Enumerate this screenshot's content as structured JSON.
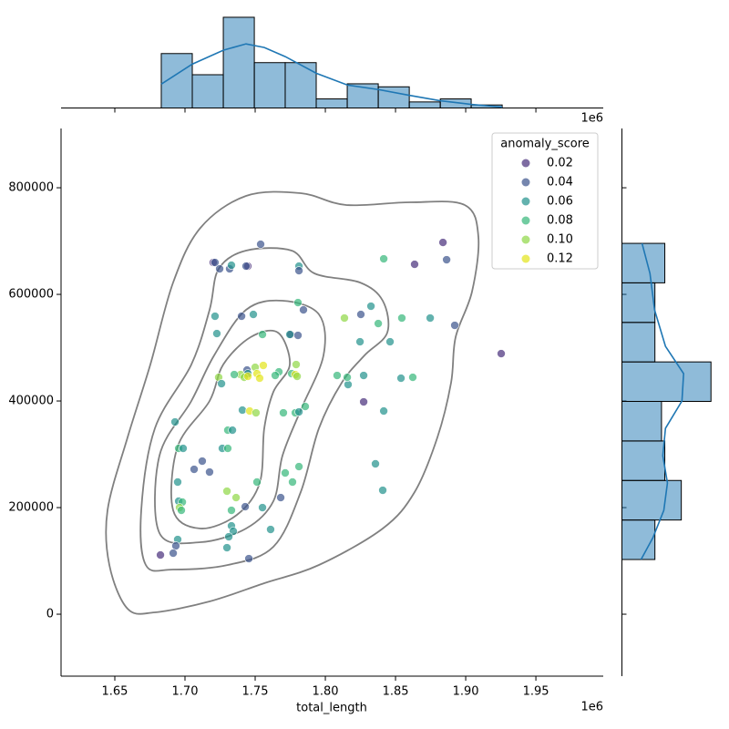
{
  "chart_data": [
    {
      "type": "scatter",
      "x_label": "total_length",
      "x_offset_label": "1e6",
      "xlim": [
        1611700,
        1998000
      ],
      "xticks": [
        {
          "value": 1650000,
          "label": "1.65"
        },
        {
          "value": 1700000,
          "label": "1.70"
        },
        {
          "value": 1750000,
          "label": "1.75"
        },
        {
          "value": 1800000,
          "label": "1.80"
        },
        {
          "value": 1850000,
          "label": "1.85"
        },
        {
          "value": 1900000,
          "label": "1.90"
        },
        {
          "value": 1950000,
          "label": "1.95"
        }
      ],
      "ylim": [
        -116200,
        911200
      ],
      "yticks": [
        0,
        200000,
        400000,
        600000,
        800000
      ],
      "legend": {
        "title": "anomaly_score",
        "position": "upper right",
        "entries": [
          {
            "value": 0.02,
            "label": "0.02",
            "color": "#472d7b"
          },
          {
            "value": 0.04,
            "label": "0.04",
            "color": "#3b528b"
          },
          {
            "value": 0.06,
            "label": "0.06",
            "color": "#21918c"
          },
          {
            "value": 0.08,
            "label": "0.08",
            "color": "#35b779"
          },
          {
            "value": 0.1,
            "label": "0.10",
            "color": "#8fd744"
          },
          {
            "value": 0.12,
            "label": "0.12",
            "color": "#e3e418"
          }
        ]
      },
      "x": [
        1720100,
        1721400,
        1753900,
        1744800,
        1743500,
        1724700,
        1731800,
        1733100,
        1781200,
        1781200,
        1883800,
        1841600,
        1863600,
        1886400,
        1721400,
        1740300,
        1748700,
        1780500,
        1784400,
        1775300,
        1780500,
        1774700,
        1722700,
        1755200,
        1825300,
        1832500,
        1813600,
        1837700,
        1854500,
        1874700,
        1892200,
        1925300,
        1824700,
        1846100,
        1744200,
        1744800,
        1755800,
        1750000,
        1751300,
        1739600,
        1742200,
        1735100,
        1724000,
        1776000,
        1779200,
        1766900,
        1778600,
        1779900,
        1726000,
        1753200,
        1744800,
        1764300,
        1827300,
        1808400,
        1816200,
        1815600,
        1862300,
        1853900,
        1827300,
        1692900,
        1740900,
        1746100,
        1750600,
        1770100,
        1778600,
        1781200,
        1785700,
        1841600,
        1730500,
        1733800,
        1695500,
        1698700,
        1726600,
        1730500,
        1712300,
        1717500,
        1706500,
        1835700,
        1771400,
        1781200,
        1776600,
        1694800,
        1751300,
        1840900,
        1729900,
        1736400,
        1695500,
        1698100,
        1696100,
        1697400,
        1733100,
        1742900,
        1755200,
        1768200,
        1733100,
        1734400,
        1731200,
        1761000,
        1694800,
        1693500,
        1729900,
        1682500,
        1691600,
        1745500
      ],
      "y": [
        659800,
        659800,
        694000,
        653000,
        653000,
        647900,
        647900,
        654700,
        653000,
        644400,
        697400,
        666700,
        656400,
        665000,
        559000,
        559000,
        562400,
        584600,
        570900,
        524800,
        523100,
        524800,
        526500,
        524800,
        562400,
        577800,
        555600,
        545300,
        555600,
        555600,
        541900,
        488900,
        511100,
        511100,
        458100,
        451300,
        466700,
        463200,
        451300,
        449600,
        444400,
        449600,
        444400,
        451300,
        468400,
        454700,
        449600,
        446200,
        432500,
        442700,
        446200,
        447900,
        447900,
        447900,
        430800,
        444400,
        444400,
        442700,
        398300,
        360700,
        382900,
        381200,
        377800,
        377800,
        377800,
        379500,
        389700,
        381200,
        345300,
        345300,
        311100,
        311100,
        311100,
        311100,
        287200,
        266700,
        271800,
        282100,
        265000,
        276900,
        247900,
        247900,
        247900,
        232500,
        230800,
        218800,
        212000,
        210300,
        200000,
        194900,
        194900,
        201700,
        200000,
        218800,
        165800,
        155600,
        145300,
        159000,
        140200,
        128200,
        124800,
        111100,
        114500,
        104300
      ],
      "hue": [
        0.02,
        0.04,
        0.04,
        0.02,
        0.04,
        0.04,
        0.04,
        0.06,
        0.06,
        0.04,
        0.02,
        0.08,
        0.02,
        0.04,
        0.06,
        0.04,
        0.06,
        0.08,
        0.04,
        0.02,
        0.04,
        0.06,
        0.06,
        0.08,
        0.04,
        0.06,
        0.1,
        0.08,
        0.08,
        0.06,
        0.04,
        0.02,
        0.06,
        0.06,
        0.04,
        0.06,
        0.12,
        0.1,
        0.12,
        0.1,
        0.1,
        0.08,
        0.1,
        0.08,
        0.1,
        0.08,
        0.12,
        0.1,
        0.06,
        0.12,
        0.12,
        0.08,
        0.06,
        0.08,
        0.06,
        0.08,
        0.08,
        0.06,
        0.02,
        0.06,
        0.06,
        0.12,
        0.1,
        0.08,
        0.08,
        0.06,
        0.08,
        0.06,
        0.08,
        0.06,
        0.08,
        0.06,
        0.06,
        0.08,
        0.04,
        0.04,
        0.04,
        0.06,
        0.08,
        0.08,
        0.08,
        0.06,
        0.08,
        0.06,
        0.1,
        0.1,
        0.06,
        0.08,
        0.1,
        0.08,
        0.08,
        0.04,
        0.06,
        0.04,
        0.06,
        0.06,
        0.06,
        0.06,
        0.06,
        0.04,
        0.06,
        0.02,
        0.04,
        0.04
      ]
    },
    {
      "type": "histogram",
      "orientation": "vertical",
      "color": "#1f77b4",
      "bins": [
        1683100,
        1705200,
        1727300,
        1749400,
        1771400,
        1793500,
        1815600,
        1837700,
        1859800,
        1881900,
        1903900,
        1926000
      ],
      "counts": [
        18,
        11,
        30,
        15,
        15,
        3,
        8,
        7,
        2,
        3,
        1
      ],
      "ylim": [
        0,
        32.7
      ],
      "kde": {
        "positions": [
          1683100,
          1705200,
          1727300,
          1743500,
          1756500,
          1771400,
          1793500,
          1815600,
          1837700,
          1859700,
          1881800,
          1903900,
          1926000
        ],
        "counts": [
          7.9,
          14.5,
          19.1,
          21.2,
          20,
          17,
          11.5,
          7.6,
          6.1,
          4.2,
          2.4,
          1.2,
          0.3
        ]
      }
    },
    {
      "type": "histogram",
      "orientation": "horizontal",
      "color": "#1f77b4",
      "bins": [
        102600,
        176700,
        250900,
        325000,
        399200,
        473300,
        547400,
        621600,
        695700
      ],
      "counts": [
        10,
        18,
        13,
        12,
        27,
        10,
        10,
        13
      ],
      "xlim": [
        0,
        29.7
      ],
      "kde": {
        "positions": [
          102600,
          143600,
          194900,
          246200,
          297400,
          348700,
          400000,
          451300,
          502600,
          570900,
          639300,
          695700
        ],
        "counts": [
          5.8,
          9.4,
          12.7,
          13.8,
          12.4,
          13.2,
          18.2,
          18.7,
          13.2,
          9.9,
          8.5,
          6.1
        ]
      }
    }
  ]
}
